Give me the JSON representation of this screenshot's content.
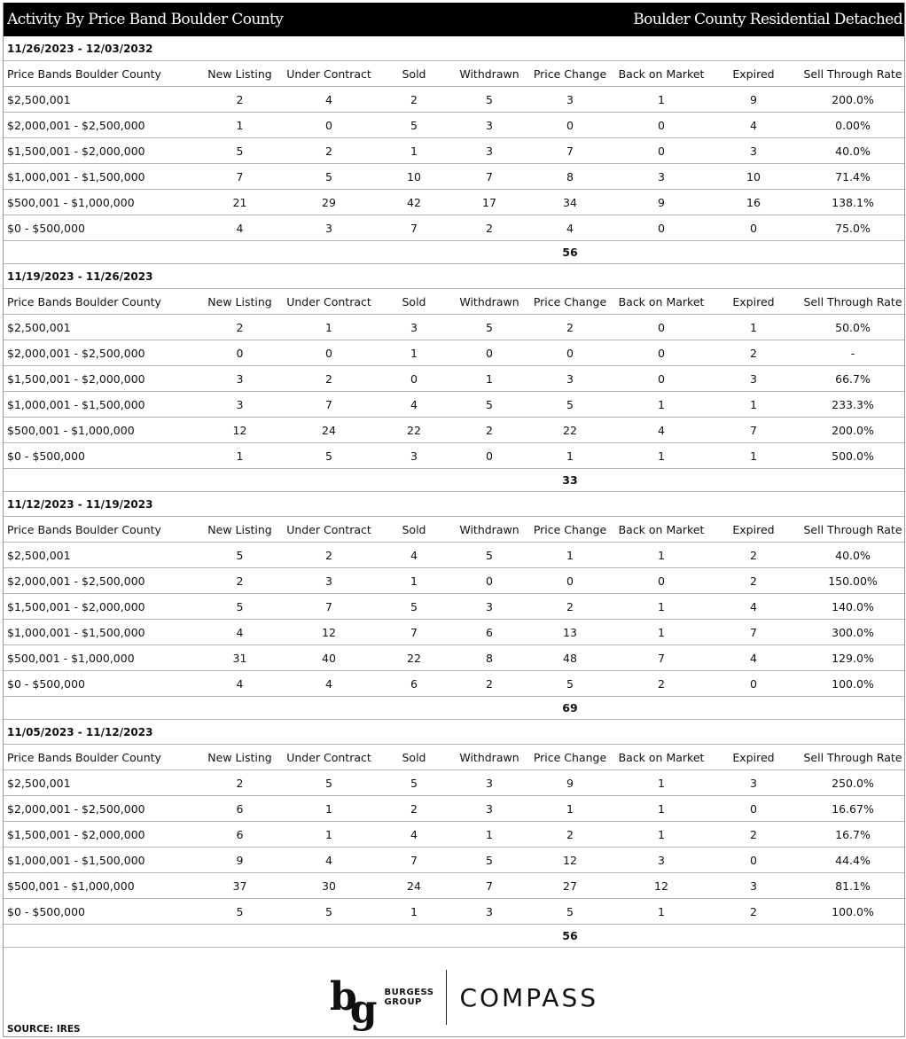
{
  "header": {
    "title": "Activity By Price Band Boulder County",
    "subtitle": "Boulder County Residential Detached"
  },
  "columns": [
    "Price Bands Boulder County",
    "New Listing",
    "Under Contract",
    "Sold",
    "Withdrawn",
    "Price Change",
    "Back on Market",
    "Expired",
    "Sell Through Rate"
  ],
  "sections": [
    {
      "date_range": "11/26/2023 - 12/03/2032",
      "total": "56",
      "rows": [
        [
          "$2,500,001",
          "2",
          "4",
          "2",
          "5",
          "3",
          "1",
          "9",
          "200.0%"
        ],
        [
          "$2,000,001 - $2,500,000",
          "1",
          "0",
          "5",
          "3",
          "0",
          "0",
          "4",
          "0.00%"
        ],
        [
          "$1,500,001 - $2,000,000",
          "5",
          "2",
          "1",
          "3",
          "7",
          "0",
          "3",
          "40.0%"
        ],
        [
          "$1,000,001 - $1,500,000",
          "7",
          "5",
          "10",
          "7",
          "8",
          "3",
          "10",
          "71.4%"
        ],
        [
          "$500,001 - $1,000,000",
          "21",
          "29",
          "42",
          "17",
          "34",
          "9",
          "16",
          "138.1%"
        ],
        [
          "$0 - $500,000",
          "4",
          "3",
          "7",
          "2",
          "4",
          "0",
          "0",
          "75.0%"
        ]
      ]
    },
    {
      "date_range": "11/19/2023 - 11/26/2023",
      "total": "33",
      "rows": [
        [
          "$2,500,001",
          "2",
          "1",
          "3",
          "5",
          "2",
          "0",
          "1",
          "50.0%"
        ],
        [
          "$2,000,001 - $2,500,000",
          "0",
          "0",
          "1",
          "0",
          "0",
          "0",
          "2",
          "-"
        ],
        [
          "$1,500,001 - $2,000,000",
          "3",
          "2",
          "0",
          "1",
          "3",
          "0",
          "3",
          "66.7%"
        ],
        [
          "$1,000,001 - $1,500,000",
          "3",
          "7",
          "4",
          "5",
          "5",
          "1",
          "1",
          "233.3%"
        ],
        [
          "$500,001 - $1,000,000",
          "12",
          "24",
          "22",
          "2",
          "22",
          "4",
          "7",
          "200.0%"
        ],
        [
          "$0 - $500,000",
          "1",
          "5",
          "3",
          "0",
          "1",
          "1",
          "1",
          "500.0%"
        ]
      ]
    },
    {
      "date_range": "11/12/2023 - 11/19/2023",
      "total": "69",
      "rows": [
        [
          "$2,500,001",
          "5",
          "2",
          "4",
          "5",
          "1",
          "1",
          "2",
          "40.0%"
        ],
        [
          "$2,000,001 - $2,500,000",
          "2",
          "3",
          "1",
          "0",
          "0",
          "0",
          "2",
          "150.00%"
        ],
        [
          "$1,500,001 - $2,000,000",
          "5",
          "7",
          "5",
          "3",
          "2",
          "1",
          "4",
          "140.0%"
        ],
        [
          "$1,000,001 - $1,500,000",
          "4",
          "12",
          "7",
          "6",
          "13",
          "1",
          "7",
          "300.0%"
        ],
        [
          "$500,001 - $1,000,000",
          "31",
          "40",
          "22",
          "8",
          "48",
          "7",
          "4",
          "129.0%"
        ],
        [
          "$0 - $500,000",
          "4",
          "4",
          "6",
          "2",
          "5",
          "2",
          "0",
          "100.0%"
        ]
      ]
    },
    {
      "date_range": "11/05/2023 - 11/12/2023",
      "total": "56",
      "rows": [
        [
          "$2,500,001",
          "2",
          "5",
          "5",
          "3",
          "9",
          "1",
          "3",
          "250.0%"
        ],
        [
          "$2,000,001 - $2,500,000",
          "6",
          "1",
          "2",
          "3",
          "1",
          "1",
          "0",
          "16.67%"
        ],
        [
          "$1,500,001 - $2,000,000",
          "6",
          "1",
          "4",
          "1",
          "2",
          "1",
          "2",
          "16.7%"
        ],
        [
          "$1,000,001 - $1,500,000",
          "9",
          "4",
          "7",
          "5",
          "12",
          "3",
          "0",
          "44.4%"
        ],
        [
          "$500,001 - $1,000,000",
          "37",
          "30",
          "24",
          "7",
          "27",
          "12",
          "3",
          "81.1%"
        ],
        [
          "$0 - $500,000",
          "5",
          "5",
          "1",
          "3",
          "5",
          "1",
          "2",
          "100.0%"
        ]
      ]
    }
  ],
  "footer": {
    "source": "SOURCE: IRES",
    "logo_mark": "bg",
    "logo_burgess": "BURGESS",
    "logo_group": "GROUP",
    "logo_compass": "COMPASS"
  }
}
